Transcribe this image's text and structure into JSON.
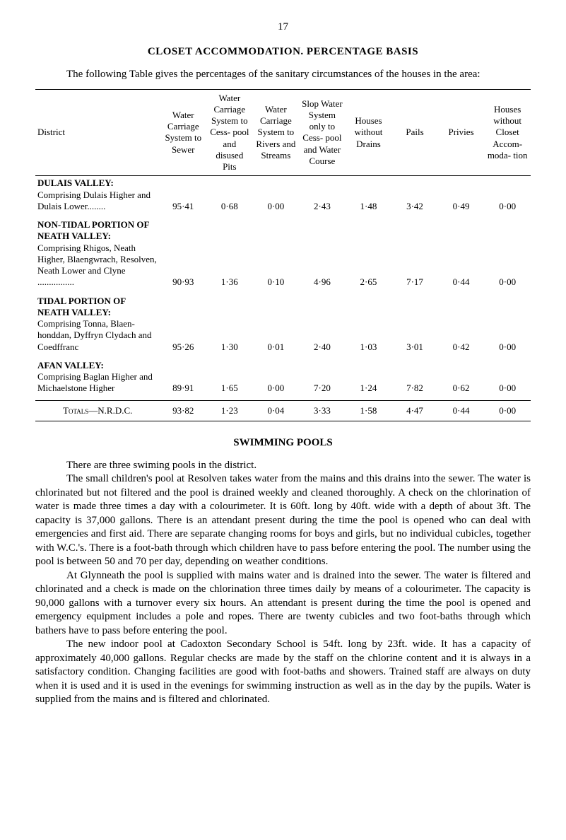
{
  "page_number": "17",
  "main_heading": "CLOSET ACCOMMODATION.   PERCENTAGE BASIS",
  "intro": "The following Table gives the percentages of the sanitary circumstances of the houses in the area:",
  "table": {
    "headers": [
      "District",
      "Water Carriage System to Sewer",
      "Water Carriage System to Cess- pool and disused Pits",
      "Water Carriage System to Rivers and Streams",
      "Slop Water System only to Cess- pool and Water Course",
      "Houses without Drains",
      "Pails",
      "Privies",
      "Houses without Closet Accom- moda- tion"
    ],
    "rows": [
      {
        "district_bold": "DULAIS VALLEY:",
        "district_detail": "Comprising Dulais Higher and Dulais Lower........",
        "values": [
          "95·41",
          "0·68",
          "0·00",
          "2·43",
          "1·48",
          "3·42",
          "0·49",
          "0·00"
        ]
      },
      {
        "district_bold": "NON-TIDAL PORTION OF NEATH VALLEY:",
        "district_detail": "Comprising Rhigos, Neath Higher, Blaengwrach, Resolven, Neath Lower and Clyne ................",
        "values": [
          "90·93",
          "1·36",
          "0·10",
          "4·96",
          "2·65",
          "7·17",
          "0·44",
          "0·00"
        ]
      },
      {
        "district_bold": "TIDAL PORTION OF NEATH VALLEY:",
        "district_detail": "Comprising Tonna, Blaen- honddan, Dyffryn Clydach and Coedffranc",
        "values": [
          "95·26",
          "1·30",
          "0·01",
          "2·40",
          "1·03",
          "3·01",
          "0·42",
          "0·00"
        ]
      },
      {
        "district_bold": "AFAN VALLEY:",
        "district_detail": "Comprising Baglan Higher and Michaelstone Higher",
        "values": [
          "89·91",
          "1·65",
          "0·00",
          "7·20",
          "1·24",
          "7·82",
          "0·62",
          "0·00"
        ]
      }
    ],
    "totals": {
      "label": "Totals—N.R.D.C.",
      "values": [
        "93·82",
        "1·23",
        "0·04",
        "3·33",
        "1·58",
        "4·47",
        "0·44",
        "0·00"
      ]
    }
  },
  "section_heading": "SWIMMING POOLS",
  "paragraphs": [
    "There are three swiming pools in the district.",
    "The small children's pool at Resolven takes water from the mains and this drains into the sewer. The water is chlorinated but not filtered and the pool is drained weekly and cleaned thoroughly. A check on the chlorination of water is made three times a day with a colourimeter. It is 60ft. long by 40ft. wide with a depth of about 3ft. The capacity is 37,000 gallons. There is an attendant present during the time the pool is opened who can deal with emergencies and first aid. There are separate changing rooms for boys and girls, but no individual cubicles, together with W.C.'s. There is a foot-bath through which children have to pass before entering the pool. The number using the pool is between 50 and 70 per day, depending on weather conditions.",
    "At Glynneath the pool is supplied with mains water and is drained into the sewer. The water is filtered and chlorinated and a check is made on the chlorination three times daily by means of a colourimeter. The capacity is 90,000 gallons with a turnover every six hours. An attendant is present during the time the pool is opened and emergency equipment includes a pole and ropes. There are twenty cubicles and two foot-baths through which bathers have to pass before entering the pool.",
    "The new indoor pool at Cadoxton Secondary School is 54ft. long by 23ft. wide. It has a capacity of approximately 40,000 gallons. Regular checks are made by the staff on the chlorine content and it is always in a satisfactory condition. Changing facilities are good with foot-baths and showers. Trained staff are always on duty when it is used and it is used in the evenings for swimming instruction as well as in the day by the pupils. Water is supplied from the mains and is filtered and chlorinated."
  ]
}
